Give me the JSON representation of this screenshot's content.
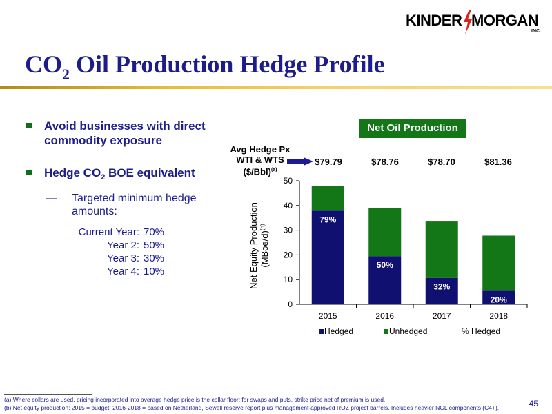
{
  "logo": {
    "left": "KINDER",
    "right": "MORGAN",
    "inc": "INC."
  },
  "title": {
    "main": "CO",
    "sub": "2",
    "rest": " Oil Production Hedge Profile"
  },
  "bullets": {
    "b1": "Avoid businesses with direct commodity exposure",
    "b2_pre": "Hedge CO",
    "b2_sub": "2",
    "b2_post": " BOE equivalent",
    "dash": "—",
    "dash_text": "Targeted minimum hedge amounts:",
    "hedge_rows": [
      {
        "label": "Current Year:",
        "value": "70%"
      },
      {
        "label": "Year 2:",
        "value": "50%"
      },
      {
        "label": "Year 3:",
        "value": "30%"
      },
      {
        "label": "Year 4:",
        "value": "10%"
      }
    ]
  },
  "chart_header": {
    "badge": "Net Oil Production",
    "hedge_px_line1": "Avg Hedge Px",
    "hedge_px_line2": "WTI & WTS",
    "hedge_px_line3": "($/Bbl)",
    "hedge_px_note": "(a)",
    "prices": [
      "$79.79",
      "$78.76",
      "$78.70",
      "$81.36"
    ]
  },
  "colors": {
    "hedged": "#101070",
    "unhedged": "#137718",
    "title": "#1c1c8c"
  },
  "chart_data": {
    "type": "bar",
    "stacked": true,
    "categories": [
      "2015",
      "2016",
      "2017",
      "2018"
    ],
    "series": [
      {
        "name": "Hedged",
        "values": [
          37.9,
          19.5,
          10.7,
          5.5
        ]
      },
      {
        "name": "Unhedged",
        "values": [
          10.1,
          19.6,
          22.8,
          22.3
        ]
      }
    ],
    "data_labels": [
      "79%",
      "50%",
      "32%",
      "20%"
    ],
    "ylabel": "Net Equity Production (MBoe/d)",
    "ylabel_note": "(b)",
    "ylim": [
      0,
      50
    ],
    "yticks": [
      0,
      10,
      20,
      30,
      40,
      50
    ],
    "legend": [
      "Hedged",
      "Unhedged",
      "% Hedged"
    ],
    "legend_position": "bottom"
  },
  "footnotes": {
    "a": "(a)  Where collars are used, pricing incorporated into average hedge price is the collar floor; for swaps and puts, strike price net of premium is used.",
    "b": "(b)  Net equity production: 2015 = budget; 2016-2018 = based on Netherland, Sewell reserve report plus management-approved ROZ project barrels. Includes heavier NGL components (C4+)."
  },
  "page_number": "45"
}
